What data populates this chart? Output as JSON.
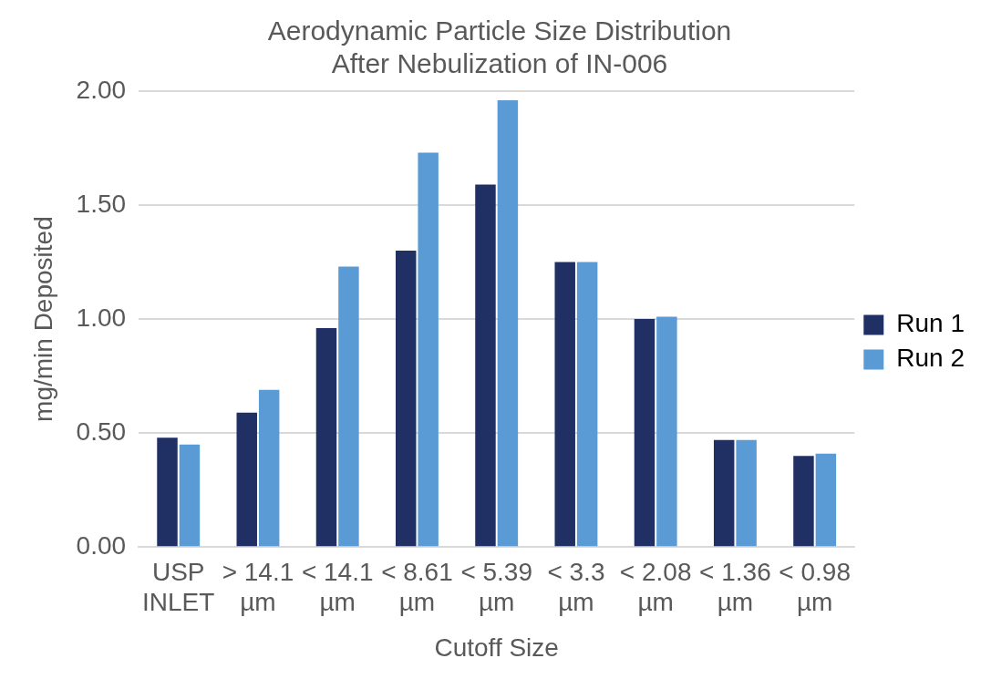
{
  "chart_data": {
    "type": "bar",
    "title": "Aerodynamic Particle Size Distribution\nAfter Nebulization of IN-006",
    "xlabel": "Cutoff Size",
    "ylabel": "mg/min Deposited",
    "categories": [
      "USP INLET",
      "> 14.1 µm",
      "< 14.1 µm",
      "< 8.61 µm",
      "< 5.39 µm",
      "< 3.3 µm",
      "< 2.08 µm",
      "< 1.36 µm",
      "< 0.98 µm"
    ],
    "series": [
      {
        "name": "Run 1",
        "color": "#203064",
        "values": [
          0.48,
          0.59,
          0.96,
          1.3,
          1.59,
          1.25,
          1.0,
          0.47,
          0.4
        ]
      },
      {
        "name": "Run 2",
        "color": "#5b9bd5",
        "values": [
          0.45,
          0.69,
          1.23,
          1.73,
          1.96,
          1.25,
          1.01,
          0.47,
          0.41
        ]
      }
    ],
    "ylim": [
      0,
      2
    ],
    "yticks": [
      {
        "value": 0,
        "label": "0.00"
      },
      {
        "value": 0.5,
        "label": "0.50"
      },
      {
        "value": 1,
        "label": "1.00"
      },
      {
        "value": 1.5,
        "label": "1.50"
      },
      {
        "value": 2,
        "label": "2.00"
      }
    ],
    "grid": "y",
    "legend": "right"
  }
}
